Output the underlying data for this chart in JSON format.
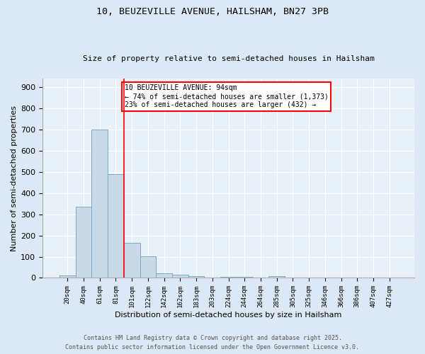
{
  "title1": "10, BEUZEVILLE AVENUE, HAILSHAM, BN27 3PB",
  "title2": "Size of property relative to semi-detached houses in Hailsham",
  "xlabel": "Distribution of semi-detached houses by size in Hailsham",
  "ylabel": "Number of semi-detached properties",
  "categories": [
    "20sqm",
    "40sqm",
    "61sqm",
    "81sqm",
    "101sqm",
    "122sqm",
    "142sqm",
    "162sqm",
    "183sqm",
    "203sqm",
    "224sqm",
    "244sqm",
    "264sqm",
    "285sqm",
    "305sqm",
    "325sqm",
    "346sqm",
    "366sqm",
    "386sqm",
    "407sqm",
    "427sqm"
  ],
  "values": [
    12,
    335,
    700,
    490,
    165,
    103,
    22,
    15,
    7,
    2,
    5,
    5,
    0,
    7,
    0,
    0,
    0,
    0,
    0,
    0,
    0
  ],
  "bar_color": "#c9d9e8",
  "bar_edge_color": "#7aaac8",
  "property_line_color": "red",
  "annotation_title": "10 BEUZEVILLE AVENUE: 94sqm",
  "annotation_line1": "← 74% of semi-detached houses are smaller (1,373)",
  "annotation_line2": "23% of semi-detached houses are larger (432) →",
  "ylim": [
    0,
    940
  ],
  "yticks": [
    0,
    100,
    200,
    300,
    400,
    500,
    600,
    700,
    800,
    900
  ],
  "footer1": "Contains HM Land Registry data © Crown copyright and database right 2025.",
  "footer2": "Contains public sector information licensed under the Open Government Licence v3.0.",
  "bg_color": "#dce8f5",
  "plot_bg_color": "#e8f0f8"
}
